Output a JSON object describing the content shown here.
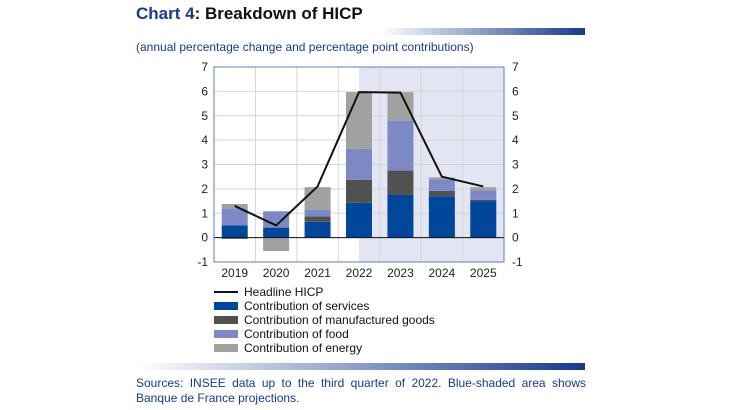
{
  "title_label": "Chart 4",
  "title_rest": ": Breakdown of HICP",
  "subtitle": "(annual percentage change and percentage point contributions)",
  "sources": "Sources: INSEE data up to the third quarter of 2022. Blue-shaded area shows Banque de France projections.",
  "chart_data": {
    "type": "bar",
    "stacked": true,
    "categories": [
      "2019",
      "2020",
      "2021",
      "2022",
      "2023",
      "2024",
      "2025"
    ],
    "ylim": [
      -1,
      7
    ],
    "yticks": [
      -1,
      0,
      1,
      2,
      3,
      4,
      5,
      6,
      7
    ],
    "grid": true,
    "projection_shading_from": "2022",
    "legend_placement": "bottom",
    "series": [
      {
        "name": "Contribution of services",
        "color": "#00469b",
        "values": [
          0.5,
          0.4,
          0.65,
          1.43,
          1.75,
          1.7,
          1.5
        ]
      },
      {
        "name": "Contribution of manufactured goods",
        "color": "#505250",
        "values": [
          -0.05,
          0.03,
          0.22,
          0.94,
          1.0,
          0.22,
          0.05
        ]
      },
      {
        "name": "Contribution of food",
        "color": "#7d89c5",
        "values": [
          0.7,
          0.65,
          0.27,
          1.27,
          2.05,
          0.47,
          0.4
        ]
      },
      {
        "name": "Contribution of energy",
        "color": "#a0a2a0",
        "values": [
          0.18,
          -0.55,
          0.93,
          2.33,
          1.17,
          0.08,
          0.12
        ]
      }
    ],
    "line": {
      "name": "Headline HICP",
      "color": "#111111",
      "values": [
        1.3,
        0.5,
        2.1,
        5.97,
        5.95,
        2.5,
        2.1
      ]
    },
    "shade_color": "#e4e5f2"
  }
}
